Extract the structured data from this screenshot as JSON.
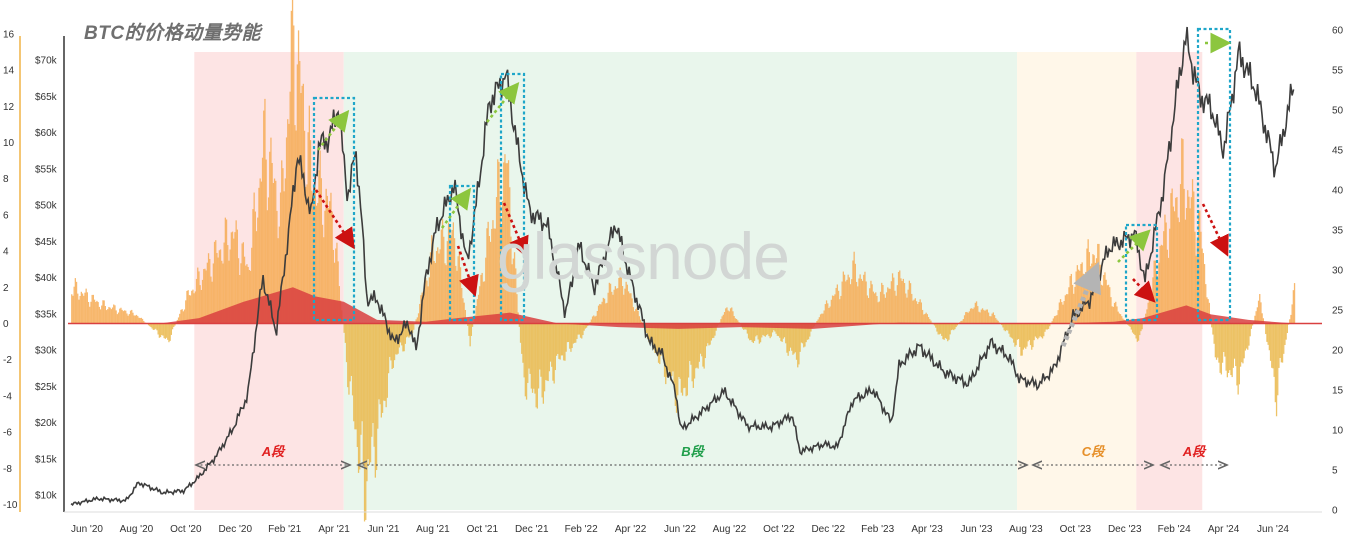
{
  "chart_data": {
    "type": "line",
    "title": "BTC的价格动量势能",
    "watermark": "glassnode",
    "x_ticks": [
      "Jun '20",
      "Aug '20",
      "Oct '20",
      "Dec '20",
      "Feb '21",
      "Apr '21",
      "Jun '21",
      "Aug '21",
      "Oct '21",
      "Dec '21",
      "Feb '22",
      "Apr '22",
      "Jun '22",
      "Aug '22",
      "Oct '22",
      "Dec '22",
      "Feb '23",
      "Apr '23",
      "Jun '23",
      "Aug '23",
      "Oct '23",
      "Dec '23",
      "Feb '24",
      "Apr '24",
      "Jun '24"
    ],
    "y_left_outer_ticks": [
      "16",
      "14",
      "12",
      "10",
      "8",
      "6",
      "4",
      "2",
      "0",
      "-2",
      "-4",
      "-6",
      "-8",
      "-10"
    ],
    "y_left_outer_range": [
      -10,
      16
    ],
    "y_price_ticks": [
      "$70k",
      "$65k",
      "$60k",
      "$55k",
      "$50k",
      "$45k",
      "$40k",
      "$35k",
      "$30k",
      "$25k",
      "$20k",
      "$15k",
      "$10k"
    ],
    "y_price_range": [
      10000,
      70000
    ],
    "y_right_ticks": [
      "60",
      "55",
      "50",
      "45",
      "40",
      "35",
      "30",
      "25",
      "20",
      "15",
      "10",
      "5",
      "0"
    ],
    "y_right_range": [
      0,
      60
    ],
    "colors": {
      "price_line": "#3c3c3c",
      "momentum_positive": "#f6ab55",
      "momentum_negative": "#eab94c",
      "momentum_red": "#d94040",
      "segment_a": "#fde4e4",
      "segment_b": "#e9f6ec",
      "segment_c": "#fff7e9",
      "highlight_box": "#1ea6c9",
      "arrow_green": "#8cc63e",
      "arrow_red": "#cc1111",
      "arrow_gray": "#b4b4b4",
      "label_a": "#e02020",
      "label_b": "#1f9e4a",
      "label_c": "#e6902a"
    },
    "segments": [
      {
        "label": "A段",
        "start": "2020-10-14",
        "end": "2021-04-20",
        "color": "segment_a"
      },
      {
        "label": "B段",
        "start": "2021-04-20",
        "end": "2023-08-15",
        "color": "segment_b"
      },
      {
        "label": "C段",
        "start": "2023-08-15",
        "end": "2024-01-12",
        "color": "segment_c"
      },
      {
        "label": "A段",
        "start": "2024-01-12",
        "end": "2024-04-04",
        "color": "segment_a"
      }
    ],
    "price_series": {
      "name": "BTC Price",
      "x": [
        "2020-05-12",
        "2020-06-15",
        "2020-07-20",
        "2020-08-05",
        "2020-09-05",
        "2020-10-01",
        "2020-10-20",
        "2020-11-10",
        "2020-12-01",
        "2020-12-20",
        "2021-01-08",
        "2021-01-25",
        "2021-02-10",
        "2021-02-21",
        "2021-03-10",
        "2021-03-20",
        "2021-04-01",
        "2021-04-13",
        "2021-04-25",
        "2021-05-05",
        "2021-05-12",
        "2021-05-19",
        "2021-06-01",
        "2021-06-22",
        "2021-07-10",
        "2021-07-20",
        "2021-08-01",
        "2021-08-15",
        "2021-09-06",
        "2021-09-22",
        "2021-10-01",
        "2021-10-20",
        "2021-11-10",
        "2021-11-26",
        "2021-12-10",
        "2022-01-01",
        "2022-01-24",
        "2022-02-10",
        "2022-03-01",
        "2022-03-28",
        "2022-04-15",
        "2022-05-10",
        "2022-05-25",
        "2022-06-12",
        "2022-06-18",
        "2022-07-10",
        "2022-08-12",
        "2022-09-10",
        "2022-10-10",
        "2022-11-05",
        "2022-11-15",
        "2022-12-15",
        "2023-01-01",
        "2023-01-20",
        "2023-02-15",
        "2023-03-10",
        "2023-03-20",
        "2023-04-14",
        "2023-05-15",
        "2023-06-15",
        "2023-07-13",
        "2023-08-05",
        "2023-08-18",
        "2023-09-11",
        "2023-10-01",
        "2023-10-24",
        "2023-11-15",
        "2023-12-08",
        "2024-01-10",
        "2024-01-23",
        "2024-02-15",
        "2024-03-05",
        "2024-03-14",
        "2024-04-01",
        "2024-04-15",
        "2024-05-01",
        "2024-05-20",
        "2024-06-10",
        "2024-07-05",
        "2024-07-29"
      ],
      "values": [
        8700,
        9500,
        9200,
        11700,
        10300,
        10600,
        12500,
        15300,
        19000,
        23700,
        40000,
        32500,
        46500,
        57000,
        48500,
        58500,
        59000,
        63500,
        51000,
        57500,
        49000,
        37000,
        37000,
        31000,
        33800,
        30000,
        39800,
        47000,
        52700,
        42000,
        48000,
        64000,
        68000,
        57000,
        49000,
        47300,
        35000,
        44500,
        38500,
        47500,
        40000,
        31000,
        29500,
        24000,
        19000,
        21000,
        24300,
        19500,
        19400,
        21000,
        16000,
        17000,
        16600,
        23000,
        24500,
        20000,
        28000,
        30500,
        27000,
        25300,
        31000,
        29000,
        26000,
        25200,
        27500,
        34500,
        37000,
        44000,
        46000,
        39500,
        52000,
        67000,
        73000,
        65000,
        63500,
        57500,
        71000,
        66000,
        55000,
        67000
      ]
    },
    "momentum_orange": {
      "name": "Momentum",
      "x": [
        "2020-05-12",
        "2020-06-20",
        "2020-08-01",
        "2020-09-10",
        "2020-10-05",
        "2020-11-05",
        "2020-12-01",
        "2020-12-20",
        "2021-01-10",
        "2021-01-30",
        "2021-02-15",
        "2021-03-10",
        "2021-04-05",
        "2021-04-25",
        "2021-05-15",
        "2021-06-01",
        "2021-06-20",
        "2021-07-15",
        "2021-08-10",
        "2021-09-05",
        "2021-09-25",
        "2021-10-20",
        "2021-11-10",
        "2021-12-01",
        "2021-12-20",
        "2022-01-15",
        "2022-02-15",
        "2022-03-15",
        "2022-04-05",
        "2022-05-10",
        "2022-06-15",
        "2022-07-15",
        "2022-08-15",
        "2022-09-15",
        "2022-10-15",
        "2022-11-10",
        "2022-12-10",
        "2023-01-20",
        "2023-02-20",
        "2023-03-20",
        "2023-04-15",
        "2023-05-15",
        "2023-06-20",
        "2023-07-15",
        "2023-08-20",
        "2023-09-20",
        "2023-10-25",
        "2023-11-20",
        "2023-12-15",
        "2024-01-15",
        "2024-02-10",
        "2024-03-10",
        "2024-04-01",
        "2024-04-20",
        "2024-05-20",
        "2024-06-15",
        "2024-07-05",
        "2024-07-29"
      ],
      "values": [
        2,
        1,
        0.5,
        -1,
        1.5,
        3.5,
        5,
        3,
        10,
        6,
        16,
        8,
        6,
        -3,
        -9,
        -6,
        -2,
        -0.5,
        4,
        5,
        -1,
        5,
        9,
        -3,
        -4,
        -2,
        -0.5,
        1.5,
        2.5,
        -1,
        -4,
        -2,
        1,
        -1,
        -0.5,
        -2,
        0.5,
        3,
        1.5,
        2.5,
        1,
        -1,
        1,
        0.5,
        -1.5,
        -0.5,
        2.5,
        4,
        1,
        -1,
        4,
        8,
        5,
        -2,
        -3,
        1.5,
        -4,
        2
      ]
    },
    "momentum_red": {
      "name": "Momentum (smoothed)",
      "x": [
        "2020-05-12",
        "2020-09-01",
        "2020-10-20",
        "2020-12-15",
        "2021-02-15",
        "2021-03-15",
        "2021-04-20",
        "2021-06-01",
        "2021-08-01",
        "2021-09-10",
        "2021-11-15",
        "2022-01-15",
        "2022-04-01",
        "2022-06-15",
        "2022-09-01",
        "2022-12-01",
        "2023-03-20",
        "2023-07-01",
        "2023-10-01",
        "2023-12-15",
        "2024-01-20",
        "2024-03-15",
        "2024-04-15",
        "2024-06-01",
        "2024-07-29"
      ],
      "values": [
        0,
        0,
        0.3,
        1.2,
        2,
        1.5,
        1.2,
        0.2,
        0.1,
        0.3,
        0.6,
        0,
        -0.2,
        -0.3,
        -0.2,
        -0.3,
        0.05,
        0,
        0,
        0.1,
        0.3,
        1,
        0.5,
        0.2,
        0
      ]
    }
  }
}
